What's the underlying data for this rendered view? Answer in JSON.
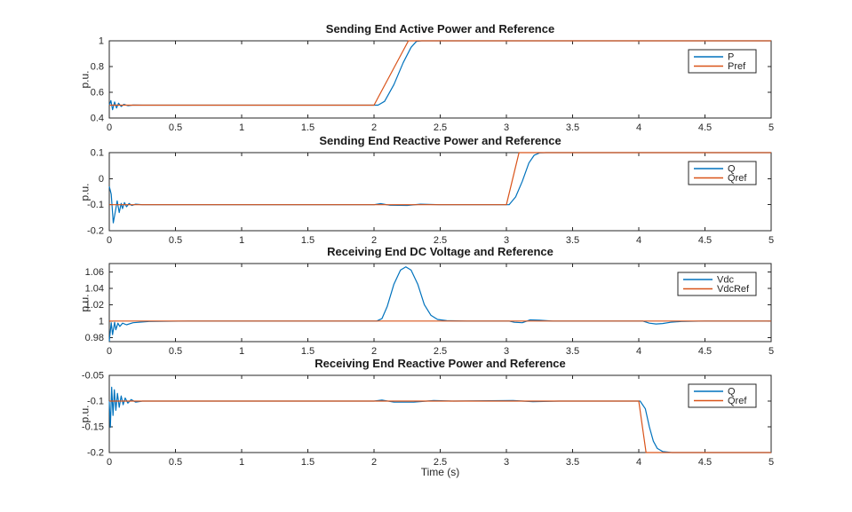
{
  "figure": {
    "background": "#ffffff",
    "axis_color": "#262626",
    "blue": "#0072BD",
    "orange": "#D95319"
  },
  "chart_data": [
    {
      "type": "line",
      "title": "Sending End Active Power and Reference",
      "ylabel": "p.u.",
      "xlabel": "",
      "xlim": [
        0,
        5
      ],
      "ylim": [
        0.4,
        1.0
      ],
      "grid": false,
      "legend_position": "northeast",
      "xticks": {
        "values": [
          0,
          0.5,
          1,
          1.5,
          2,
          2.5,
          3,
          3.5,
          4,
          4.5,
          5
        ],
        "labels": [
          "0",
          "0.5",
          "1",
          "1.5",
          "2",
          "2.5",
          "3",
          "3.5",
          "4",
          "4.5",
          "5"
        ]
      },
      "yticks": {
        "values": [
          0.4,
          0.6,
          0.8,
          1.0
        ],
        "labels": [
          "0.4",
          "0.6",
          "0.8",
          "1"
        ]
      },
      "series": [
        {
          "name": "P",
          "color": "#0072BD",
          "points": [
            [
              0,
              0.5
            ],
            [
              0.012,
              0.535
            ],
            [
              0.025,
              0.465
            ],
            [
              0.04,
              0.525
            ],
            [
              0.055,
              0.478
            ],
            [
              0.07,
              0.515
            ],
            [
              0.09,
              0.49
            ],
            [
              0.11,
              0.506
            ],
            [
              0.14,
              0.496
            ],
            [
              0.18,
              0.501
            ],
            [
              0.25,
              0.5
            ],
            [
              2.03,
              0.5
            ],
            [
              2.08,
              0.53
            ],
            [
              2.15,
              0.66
            ],
            [
              2.22,
              0.83
            ],
            [
              2.28,
              0.95
            ],
            [
              2.32,
              0.995
            ],
            [
              2.36,
              1.0
            ],
            [
              5,
              1.0
            ]
          ]
        },
        {
          "name": "Pref",
          "color": "#D95319",
          "points": [
            [
              0,
              0.5
            ],
            [
              2.0,
              0.5
            ],
            [
              2.26,
              1.0
            ],
            [
              5,
              1.0
            ]
          ]
        }
      ]
    },
    {
      "type": "line",
      "title": "Sending End Reactive Power and Reference",
      "ylabel": "p.u.",
      "xlabel": "",
      "xlim": [
        0,
        5
      ],
      "ylim": [
        -0.2,
        0.1
      ],
      "grid": false,
      "legend_position": "northeast",
      "xticks": {
        "values": [
          0,
          0.5,
          1,
          1.5,
          2,
          2.5,
          3,
          3.5,
          4,
          4.5,
          5
        ],
        "labels": [
          "0",
          "0.5",
          "1",
          "1.5",
          "2",
          "2.5",
          "3",
          "3.5",
          "4",
          "4.5",
          "5"
        ]
      },
      "yticks": {
        "values": [
          -0.2,
          -0.1,
          0,
          0.1
        ],
        "labels": [
          "-0.2",
          "-0.1",
          "0",
          "0.1"
        ]
      },
      "series": [
        {
          "name": "Q",
          "color": "#0072BD",
          "points": [
            [
              0,
              -0.03
            ],
            [
              0.015,
              -0.06
            ],
            [
              0.03,
              -0.17
            ],
            [
              0.05,
              -0.115
            ],
            [
              0.06,
              -0.085
            ],
            [
              0.075,
              -0.13
            ],
            [
              0.09,
              -0.095
            ],
            [
              0.1,
              -0.115
            ],
            [
              0.115,
              -0.092
            ],
            [
              0.13,
              -0.108
            ],
            [
              0.15,
              -0.095
            ],
            [
              0.17,
              -0.103
            ],
            [
              0.2,
              -0.098
            ],
            [
              0.25,
              -0.1
            ],
            [
              2.0,
              -0.1
            ],
            [
              2.05,
              -0.096
            ],
            [
              2.12,
              -0.102
            ],
            [
              2.25,
              -0.103
            ],
            [
              2.35,
              -0.098
            ],
            [
              2.5,
              -0.1
            ],
            [
              3.02,
              -0.1
            ],
            [
              3.07,
              -0.07
            ],
            [
              3.12,
              -0.01
            ],
            [
              3.17,
              0.06
            ],
            [
              3.21,
              0.09
            ],
            [
              3.25,
              0.099
            ],
            [
              3.3,
              0.1
            ],
            [
              5,
              0.1
            ]
          ]
        },
        {
          "name": "Qref",
          "color": "#D95319",
          "points": [
            [
              0,
              -0.1
            ],
            [
              3.0,
              -0.1
            ],
            [
              3.095,
              0.1
            ],
            [
              5,
              0.1
            ]
          ]
        }
      ]
    },
    {
      "type": "line",
      "title": "Receiving End DC Voltage and Reference",
      "ylabel": "p.u.",
      "xlabel": "",
      "xlim": [
        0,
        5
      ],
      "ylim": [
        0.975,
        1.07
      ],
      "grid": false,
      "legend_position": "northeast",
      "xticks": {
        "values": [
          0,
          0.5,
          1,
          1.5,
          2,
          2.5,
          3,
          3.5,
          4,
          4.5,
          5
        ],
        "labels": [
          "0",
          "0.5",
          "1",
          "1.5",
          "2",
          "2.5",
          "3",
          "3.5",
          "4",
          "4.5",
          "5"
        ]
      },
      "yticks": {
        "values": [
          0.98,
          1,
          1.02,
          1.04,
          1.06
        ],
        "labels": [
          "0.98",
          "1",
          "1.02",
          "1.04",
          "1.06"
        ]
      },
      "series": [
        {
          "name": "Vdc",
          "color": "#0072BD",
          "points": [
            [
              0,
              0.9755
            ],
            [
              0.015,
              0.998
            ],
            [
              0.025,
              0.9835
            ],
            [
              0.04,
              0.9985
            ],
            [
              0.05,
              0.9895
            ],
            [
              0.065,
              0.9975
            ],
            [
              0.08,
              0.9935
            ],
            [
              0.1,
              0.9975
            ],
            [
              0.13,
              0.9955
            ],
            [
              0.18,
              0.998
            ],
            [
              0.3,
              0.9995
            ],
            [
              0.6,
              1.0
            ],
            [
              2.02,
              1.0
            ],
            [
              2.06,
              1.003
            ],
            [
              2.1,
              1.018
            ],
            [
              2.15,
              1.045
            ],
            [
              2.2,
              1.062
            ],
            [
              2.24,
              1.066
            ],
            [
              2.28,
              1.062
            ],
            [
              2.33,
              1.045
            ],
            [
              2.38,
              1.02
            ],
            [
              2.43,
              1.007
            ],
            [
              2.48,
              1.002
            ],
            [
              2.55,
              1.0005
            ],
            [
              2.7,
              1.0
            ],
            [
              3.02,
              1.0
            ],
            [
              3.06,
              0.9985
            ],
            [
              3.12,
              0.998
            ],
            [
              3.18,
              1.0015
            ],
            [
              3.25,
              1.001
            ],
            [
              3.35,
              1.0
            ],
            [
              4.03,
              1.0
            ],
            [
              4.08,
              0.9975
            ],
            [
              4.13,
              0.9965
            ],
            [
              4.18,
              0.997
            ],
            [
              4.24,
              0.9985
            ],
            [
              4.32,
              0.9995
            ],
            [
              4.5,
              1.0
            ],
            [
              5,
              1.0
            ]
          ]
        },
        {
          "name": "VdcRef",
          "color": "#D95319",
          "points": [
            [
              0,
              1.0
            ],
            [
              5,
              1.0
            ]
          ]
        }
      ]
    },
    {
      "type": "line",
      "title": "Receiving End Reactive Power and Reference",
      "ylabel": "p.u.",
      "xlabel": "Time (s)",
      "xlim": [
        0,
        5
      ],
      "ylim": [
        -0.2,
        -0.05
      ],
      "grid": false,
      "legend_position": "northeast",
      "xticks": {
        "values": [
          0,
          0.5,
          1,
          1.5,
          2,
          2.5,
          3,
          3.5,
          4,
          4.5,
          5
        ],
        "labels": [
          "0",
          "0.5",
          "1",
          "1.5",
          "2",
          "2.5",
          "3",
          "3.5",
          "4",
          "4.5",
          "5"
        ]
      },
      "yticks": {
        "values": [
          -0.2,
          -0.15,
          -0.1,
          -0.05
        ],
        "labels": [
          "-0.2",
          "-0.15",
          "-0.1",
          "-0.05"
        ]
      },
      "series": [
        {
          "name": "Q",
          "color": "#0072BD",
          "points": [
            [
              0,
              -0.1
            ],
            [
              0.008,
              -0.151
            ],
            [
              0.018,
              -0.073
            ],
            [
              0.028,
              -0.128
            ],
            [
              0.038,
              -0.078
            ],
            [
              0.05,
              -0.118
            ],
            [
              0.062,
              -0.085
            ],
            [
              0.075,
              -0.112
            ],
            [
              0.09,
              -0.09
            ],
            [
              0.105,
              -0.107
            ],
            [
              0.12,
              -0.094
            ],
            [
              0.14,
              -0.104
            ],
            [
              0.165,
              -0.097
            ],
            [
              0.2,
              -0.102
            ],
            [
              0.25,
              -0.1
            ],
            [
              2.0,
              -0.1
            ],
            [
              2.06,
              -0.098
            ],
            [
              2.15,
              -0.102
            ],
            [
              2.3,
              -0.102
            ],
            [
              2.45,
              -0.099
            ],
            [
              2.6,
              -0.1
            ],
            [
              3.05,
              -0.099
            ],
            [
              3.2,
              -0.101
            ],
            [
              3.4,
              -0.1
            ],
            [
              4.01,
              -0.1
            ],
            [
              4.05,
              -0.115
            ],
            [
              4.08,
              -0.15
            ],
            [
              4.11,
              -0.178
            ],
            [
              4.14,
              -0.192
            ],
            [
              4.18,
              -0.198
            ],
            [
              4.25,
              -0.2
            ],
            [
              5,
              -0.2
            ]
          ]
        },
        {
          "name": "Qref",
          "color": "#D95319",
          "points": [
            [
              0,
              -0.1
            ],
            [
              4.0,
              -0.1
            ],
            [
              4.055,
              -0.2
            ],
            [
              5,
              -0.2
            ]
          ]
        }
      ]
    }
  ]
}
